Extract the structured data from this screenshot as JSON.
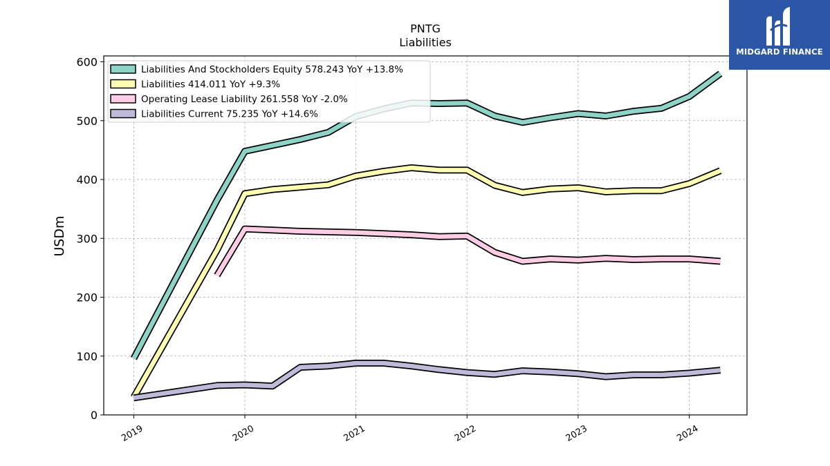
{
  "chart_data": {
    "type": "line",
    "title": "PNTG",
    "subtitle": "Liabilities",
    "ylabel": "USDm",
    "xlabel": "",
    "ylim": [
      0,
      610
    ],
    "xlim": [
      2018.73,
      2024.52
    ],
    "yticks": [
      0,
      100,
      200,
      300,
      400,
      500,
      600
    ],
    "xticks": [
      {
        "value": 2019,
        "label": "2019"
      },
      {
        "value": 2020,
        "label": "2020"
      },
      {
        "value": 2021,
        "label": "2021"
      },
      {
        "value": 2022,
        "label": "2022"
      },
      {
        "value": 2023,
        "label": "2023"
      },
      {
        "value": 2024,
        "label": "2024"
      }
    ],
    "grid": true,
    "legend_position": "top-left",
    "series": [
      {
        "name": "Liabilities And Stockholders Equity  578.243 YoY +13.8%",
        "color": "#8dd3c7",
        "points": [
          [
            2019.0,
            96
          ],
          [
            2019.75,
            365
          ],
          [
            2020.0,
            448
          ],
          [
            2020.25,
            458
          ],
          [
            2020.5,
            468
          ],
          [
            2020.75,
            480
          ],
          [
            2021.0,
            507
          ],
          [
            2021.25,
            520
          ],
          [
            2021.5,
            530
          ],
          [
            2021.75,
            529
          ],
          [
            2022.0,
            530
          ],
          [
            2022.25,
            508
          ],
          [
            2022.5,
            497
          ],
          [
            2022.75,
            505
          ],
          [
            2023.0,
            512
          ],
          [
            2023.25,
            508
          ],
          [
            2023.5,
            516
          ],
          [
            2023.75,
            521
          ],
          [
            2024.0,
            541
          ],
          [
            2024.28,
            580
          ]
        ]
      },
      {
        "name": "Liabilities  414.011 YoY +9.3%",
        "color": "#ffffb3",
        "points": [
          [
            2019.0,
            30
          ],
          [
            2019.75,
            280
          ],
          [
            2020.0,
            376
          ],
          [
            2020.25,
            383
          ],
          [
            2020.5,
            387
          ],
          [
            2020.75,
            391
          ],
          [
            2021.0,
            406
          ],
          [
            2021.25,
            414
          ],
          [
            2021.5,
            420
          ],
          [
            2021.75,
            416
          ],
          [
            2022.0,
            416
          ],
          [
            2022.25,
            390
          ],
          [
            2022.5,
            378
          ],
          [
            2022.75,
            384
          ],
          [
            2023.0,
            386
          ],
          [
            2023.25,
            379
          ],
          [
            2023.5,
            381
          ],
          [
            2023.75,
            381
          ],
          [
            2024.0,
            393
          ],
          [
            2024.28,
            415
          ]
        ]
      },
      {
        "name": "Operating Lease Liability  261.558 YoY -2.0%",
        "color": "#fccde5",
        "points": [
          [
            2019.75,
            237
          ],
          [
            2020.0,
            316
          ],
          [
            2020.25,
            314
          ],
          [
            2020.5,
            312
          ],
          [
            2020.75,
            311
          ],
          [
            2021.0,
            310
          ],
          [
            2021.25,
            308
          ],
          [
            2021.5,
            306
          ],
          [
            2021.75,
            303
          ],
          [
            2022.0,
            304
          ],
          [
            2022.25,
            276
          ],
          [
            2022.5,
            261
          ],
          [
            2022.75,
            265
          ],
          [
            2023.0,
            263
          ],
          [
            2023.25,
            266
          ],
          [
            2023.5,
            264
          ],
          [
            2023.75,
            265
          ],
          [
            2024.0,
            265
          ],
          [
            2024.28,
            261
          ]
        ]
      },
      {
        "name": "Liabilities Current  75.235 YoY +14.6%",
        "color": "#bebada",
        "points": [
          [
            2019.0,
            29
          ],
          [
            2019.75,
            50
          ],
          [
            2020.0,
            51
          ],
          [
            2020.25,
            49
          ],
          [
            2020.5,
            81
          ],
          [
            2020.75,
            83
          ],
          [
            2021.0,
            88
          ],
          [
            2021.25,
            88
          ],
          [
            2021.5,
            83
          ],
          [
            2021.75,
            77
          ],
          [
            2022.0,
            72
          ],
          [
            2022.25,
            69
          ],
          [
            2022.5,
            75
          ],
          [
            2022.75,
            73
          ],
          [
            2023.0,
            70
          ],
          [
            2023.25,
            65
          ],
          [
            2023.5,
            68
          ],
          [
            2023.75,
            68
          ],
          [
            2024.0,
            71
          ],
          [
            2024.28,
            76
          ]
        ]
      }
    ]
  },
  "logo": {
    "text": "MIDGARD FINANCE",
    "background": "#2c56a6",
    "icon": "midgard-m-logo-icon"
  }
}
